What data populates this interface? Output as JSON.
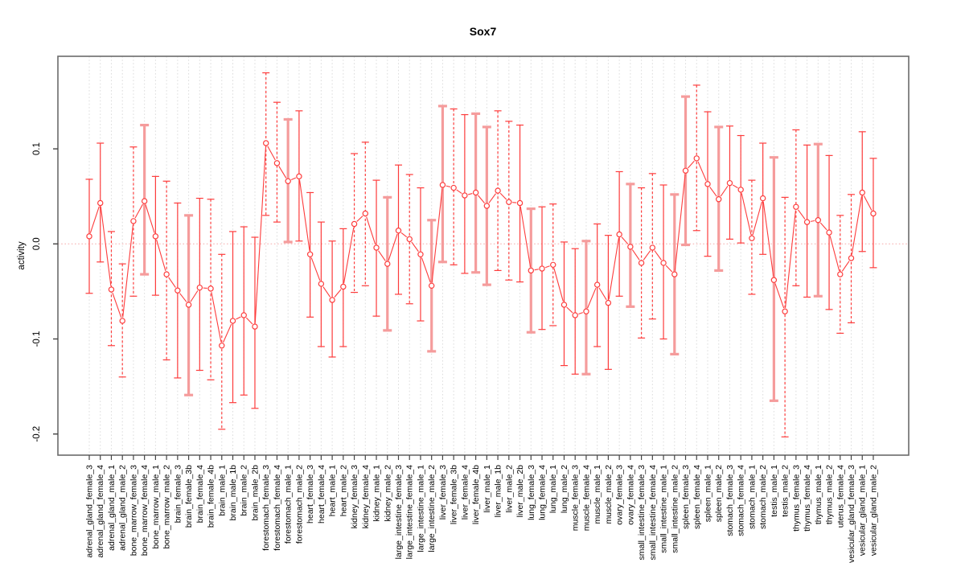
{
  "chart_data": {
    "type": "scatter",
    "subtype": "point-with-error-bars",
    "title": "Sox7",
    "ylabel": "activity",
    "xlabel": "",
    "ylim": [
      -0.225,
      0.19
    ],
    "grid": "vertical-dotted",
    "zero_line": true,
    "legend": "none",
    "yticks": [
      {
        "v": 0.1,
        "label": "0.1"
      },
      {
        "v": 0.0,
        "label": "0.0"
      },
      {
        "v": -0.1,
        "label": "-0.1"
      },
      {
        "v": -0.2,
        "label": "-0.2"
      }
    ],
    "categories": [
      "adrenal_gland_female_3",
      "adrenal_gland_female_4",
      "adrenal_gland_male_1",
      "adrenal_gland_male_2",
      "bone_marrow_female_3",
      "bone_marrow_female_4",
      "bone_marrow_male_1",
      "bone_marrow_male_2",
      "brain_female_3",
      "brain_female_3b",
      "brain_female_4",
      "brain_female_4b",
      "brain_male_1",
      "brain_male_1b",
      "brain_male_2",
      "brain_male_2b",
      "forestomach_female_3",
      "forestomach_female_4",
      "forestomach_male_1",
      "forestomach_male_2",
      "heart_female_3",
      "heart_female_4",
      "heart_male_1",
      "heart_male_2",
      "kidney_female_3",
      "kidney_female_4",
      "kidney_male_1",
      "kidney_male_2",
      "large_intestine_female_3",
      "large_intestine_female_4",
      "large_intestine_male_1",
      "large_intestine_male_2",
      "liver_female_3",
      "liver_female_3b",
      "liver_female_4",
      "liver_female_4b",
      "liver_male_1",
      "liver_male_1b",
      "liver_male_2",
      "liver_male_2b",
      "lung_female_3",
      "lung_female_4",
      "lung_male_1",
      "lung_male_2",
      "muscle_female_3",
      "muscle_female_4",
      "muscle_male_1",
      "muscle_male_2",
      "ovary_female_3",
      "ovary_female_4",
      "small_intestine_female_3",
      "small_intestine_female_4",
      "small_intestine_male_1",
      "small_intestine_male_2",
      "spleen_female_3",
      "spleen_female_4",
      "spleen_male_1",
      "spleen_male_2",
      "stomach_female_3",
      "stomach_female_4",
      "stomach_male_1",
      "stomach_male_2",
      "testis_male_1",
      "testis_male_2",
      "thymus_female_3",
      "thymus_female_4",
      "thymus_male_1",
      "thymus_male_2",
      "uterus_female_4",
      "vesicular_gland_female_3",
      "vesicular_gland_male_1",
      "vesicular_gland_male_2"
    ],
    "mid": [
      0.008,
      0.043,
      -0.048,
      -0.081,
      0.024,
      0.045,
      0.008,
      -0.032,
      -0.049,
      -0.064,
      -0.046,
      -0.047,
      -0.107,
      -0.081,
      -0.075,
      -0.087,
      0.106,
      0.085,
      0.066,
      0.071,
      -0.011,
      -0.042,
      -0.059,
      -0.045,
      0.021,
      0.032,
      -0.004,
      -0.021,
      0.014,
      0.005,
      -0.011,
      -0.044,
      0.062,
      0.059,
      0.051,
      0.054,
      0.04,
      0.056,
      0.044,
      0.043,
      -0.028,
      -0.026,
      -0.022,
      -0.064,
      -0.075,
      -0.071,
      -0.043,
      -0.062,
      0.01,
      -0.003,
      -0.02,
      -0.004,
      -0.02,
      -0.032,
      0.077,
      0.09,
      0.063,
      0.047,
      0.064,
      0.057,
      0.006,
      0.048,
      -0.038,
      -0.071,
      0.039,
      0.023,
      0.025,
      0.012,
      -0.032,
      -0.015,
      0.054,
      0.032
    ],
    "lo": [
      -0.052,
      -0.019,
      -0.107,
      -0.14,
      -0.055,
      -0.032,
      -0.054,
      -0.122,
      -0.141,
      -0.159,
      -0.133,
      -0.143,
      -0.195,
      -0.167,
      -0.159,
      -0.173,
      0.03,
      0.023,
      0.002,
      0.003,
      -0.077,
      -0.108,
      -0.119,
      -0.108,
      -0.051,
      -0.044,
      -0.076,
      -0.091,
      -0.053,
      -0.063,
      -0.081,
      -0.113,
      -0.019,
      -0.022,
      -0.031,
      -0.03,
      -0.043,
      -0.028,
      -0.038,
      -0.04,
      -0.093,
      -0.09,
      -0.086,
      -0.128,
      -0.137,
      -0.137,
      -0.108,
      -0.132,
      -0.055,
      -0.066,
      -0.099,
      -0.079,
      -0.1,
      -0.116,
      -0.001,
      0.014,
      -0.013,
      -0.028,
      0.005,
      0.001,
      -0.053,
      -0.011,
      -0.165,
      -0.203,
      -0.044,
      -0.056,
      -0.055,
      -0.069,
      -0.094,
      -0.083,
      -0.008,
      -0.025
    ],
    "hi": [
      0.068,
      0.106,
      0.013,
      -0.021,
      0.102,
      0.125,
      0.071,
      0.066,
      0.043,
      0.03,
      0.048,
      0.047,
      -0.011,
      0.013,
      0.018,
      0.007,
      0.18,
      0.149,
      0.131,
      0.14,
      0.054,
      0.023,
      0.003,
      0.016,
      0.095,
      0.107,
      0.067,
      0.049,
      0.083,
      0.073,
      0.059,
      0.025,
      0.145,
      0.142,
      0.136,
      0.137,
      0.123,
      0.14,
      0.129,
      0.125,
      0.037,
      0.039,
      0.042,
      0.002,
      -0.005,
      0.003,
      0.021,
      0.009,
      0.076,
      0.063,
      0.059,
      0.074,
      0.062,
      0.052,
      0.155,
      0.167,
      0.139,
      0.123,
      0.124,
      0.114,
      0.067,
      0.106,
      0.091,
      0.049,
      0.12,
      0.104,
      0.105,
      0.093,
      0.03,
      0.052,
      0.118,
      0.09
    ],
    "style": [
      "solid",
      "solid",
      "dashed",
      "dashed",
      "dashed",
      "thick",
      "solid",
      "dashed",
      "solid",
      "thick",
      "solid",
      "dashed",
      "dashed",
      "solid",
      "solid",
      "solid",
      "dashed",
      "dashed",
      "thick",
      "solid",
      "solid",
      "solid",
      "solid",
      "solid",
      "dashed",
      "dashed",
      "solid",
      "thick",
      "solid",
      "dashed",
      "solid",
      "thick",
      "thick",
      "dashed",
      "solid",
      "thick",
      "thick",
      "dashed",
      "dashed",
      "solid",
      "thick",
      "solid",
      "dashed",
      "solid",
      "solid",
      "thick",
      "solid",
      "solid",
      "solid",
      "thick",
      "dashed",
      "dashed",
      "solid",
      "thick",
      "thick",
      "dashed",
      "solid",
      "thick",
      "solid",
      "solid",
      "dashed",
      "solid",
      "thick",
      "dashed",
      "dashed",
      "solid",
      "thick",
      "solid",
      "dashed",
      "dashed",
      "solid",
      "solid"
    ],
    "colors": {
      "point": "#fd3c3c",
      "thick_bar": "#f59c9c",
      "zero_line": "#f6a8a8",
      "gridline": "#dcdcdc",
      "axis": "#6b6b6b",
      "tick": "#444444",
      "text": "#000000"
    }
  }
}
